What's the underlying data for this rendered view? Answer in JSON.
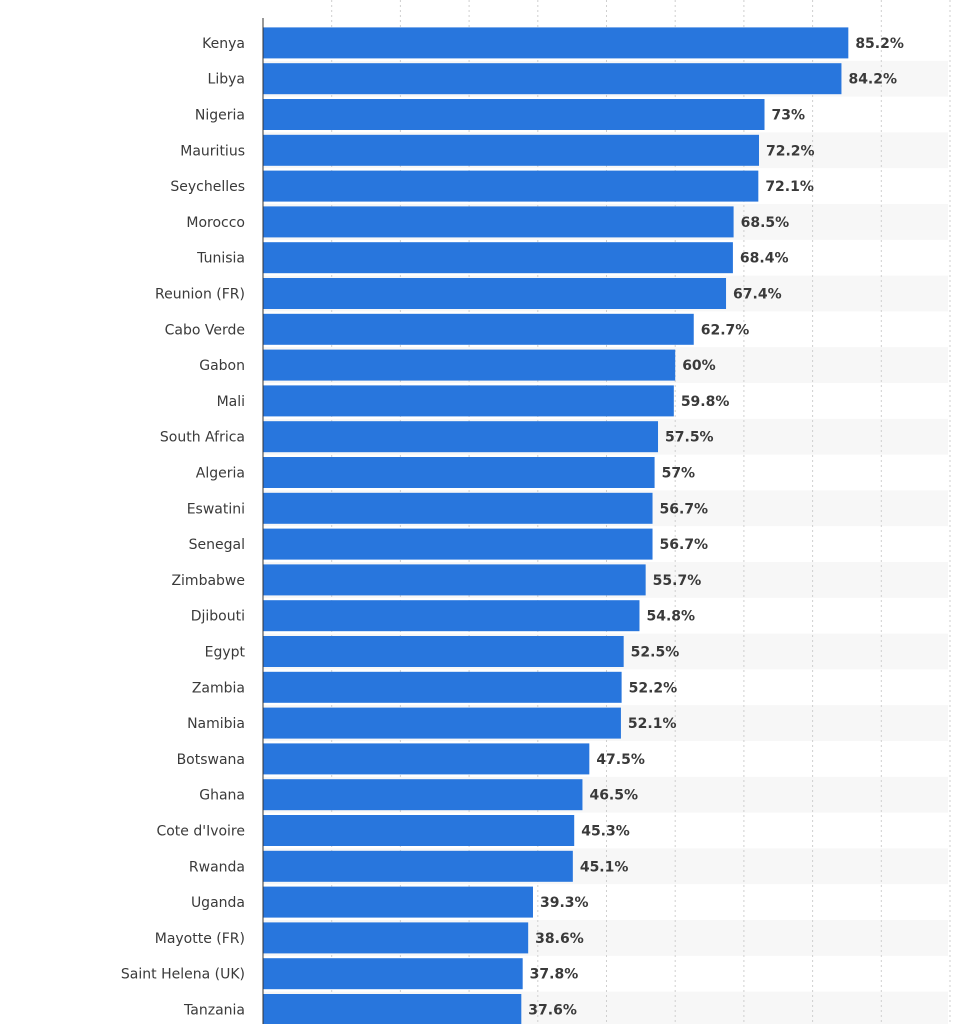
{
  "chart_data": {
    "type": "bar",
    "orientation": "horizontal",
    "categories": [
      "Kenya",
      "Libya",
      "Nigeria",
      "Mauritius",
      "Seychelles",
      "Morocco",
      "Tunisia",
      "Reunion (FR)",
      "Cabo Verde",
      "Gabon",
      "Mali",
      "South Africa",
      "Algeria",
      "Eswatini",
      "Senegal",
      "Zimbabwe",
      "Djibouti",
      "Egypt",
      "Zambia",
      "Namibia",
      "Botswana",
      "Ghana",
      "Cote d'Ivoire",
      "Rwanda",
      "Uganda",
      "Mayotte (FR)",
      "Saint Helena (UK)",
      "Tanzania"
    ],
    "values": [
      85.2,
      84.2,
      73,
      72.2,
      72.1,
      68.5,
      68.4,
      67.4,
      62.7,
      60,
      59.8,
      57.5,
      57,
      56.7,
      56.7,
      55.7,
      54.8,
      52.5,
      52.2,
      52.1,
      47.5,
      46.5,
      45.3,
      45.1,
      39.3,
      38.6,
      37.8,
      37.6
    ],
    "value_labels": [
      "85.2%",
      "84.2%",
      "73%",
      "72.2%",
      "72.1%",
      "68.5%",
      "68.4%",
      "67.4%",
      "62.7%",
      "60%",
      "59.8%",
      "57.5%",
      "57%",
      "56.7%",
      "56.7%",
      "55.7%",
      "54.8%",
      "52.5%",
      "52.2%",
      "52.1%",
      "47.5%",
      "46.5%",
      "45.3%",
      "45.1%",
      "39.3%",
      "38.6%",
      "37.8%",
      "37.6%"
    ],
    "xlim": [
      0,
      100
    ],
    "grid": true,
    "bar_color": "#2876dd",
    "band_color": "#f7f7f7",
    "grid_color": "#cfcfcf"
  }
}
